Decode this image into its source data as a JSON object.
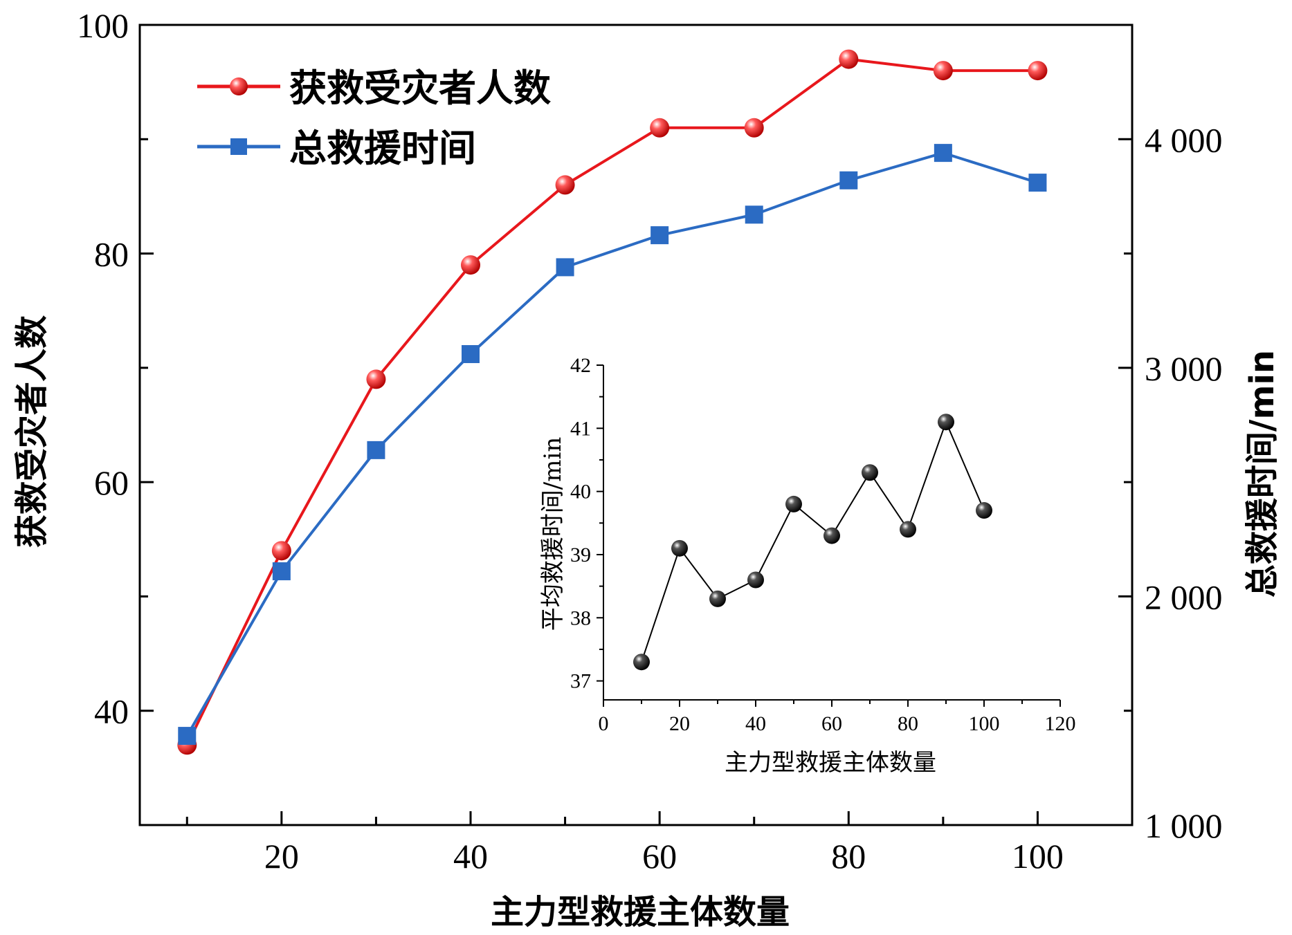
{
  "chart_data": [
    {
      "type": "line",
      "x": [
        10,
        20,
        30,
        40,
        50,
        60,
        70,
        80,
        90,
        100
      ],
      "xlabel": "主力型救援主体数量",
      "xlim": [
        5,
        110
      ],
      "xticks": [
        "20",
        "40",
        "60",
        "80",
        "100"
      ],
      "ylabel": "获救受灾者人数",
      "ylim": [
        30,
        100
      ],
      "yticks": [
        "40",
        "60",
        "80",
        "100"
      ],
      "y2label": "总救援时间/min",
      "y2lim": [
        1000,
        4500
      ],
      "y2ticks": [
        "1 000",
        "2 000",
        "3 000",
        "4 000"
      ],
      "legend_position": "top-left",
      "grid": false,
      "series": [
        {
          "name": "获救受灾者人数",
          "axis": "left",
          "color": "#e8171c",
          "marker": "sphere",
          "values": [
            37,
            54,
            69,
            79,
            86,
            91,
            91,
            97,
            96,
            96
          ]
        },
        {
          "name": "总救援时间",
          "axis": "right",
          "color": "#2b6bc3",
          "marker": "square",
          "values": [
            1390,
            2110,
            2640,
            3060,
            3440,
            3580,
            3670,
            3820,
            3940,
            3810
          ]
        }
      ]
    },
    {
      "type": "line",
      "inset": true,
      "x": [
        10,
        20,
        30,
        40,
        50,
        60,
        70,
        80,
        90,
        100
      ],
      "xlabel": "主力型救援主体数量",
      "xlim": [
        0,
        120
      ],
      "xticks": [
        "0",
        "20",
        "40",
        "60",
        "80",
        "100",
        "120"
      ],
      "ylabel": "平均救援时间/min",
      "ylim": [
        36.7,
        42
      ],
      "yticks": [
        "37",
        "38",
        "39",
        "40",
        "41",
        "42"
      ],
      "grid": false,
      "series": [
        {
          "color": "#1a1a1a",
          "marker": "sphere",
          "values": [
            37.3,
            39.1,
            38.3,
            38.6,
            39.8,
            39.3,
            40.3,
            39.4,
            41.1,
            39.7
          ]
        }
      ]
    }
  ]
}
